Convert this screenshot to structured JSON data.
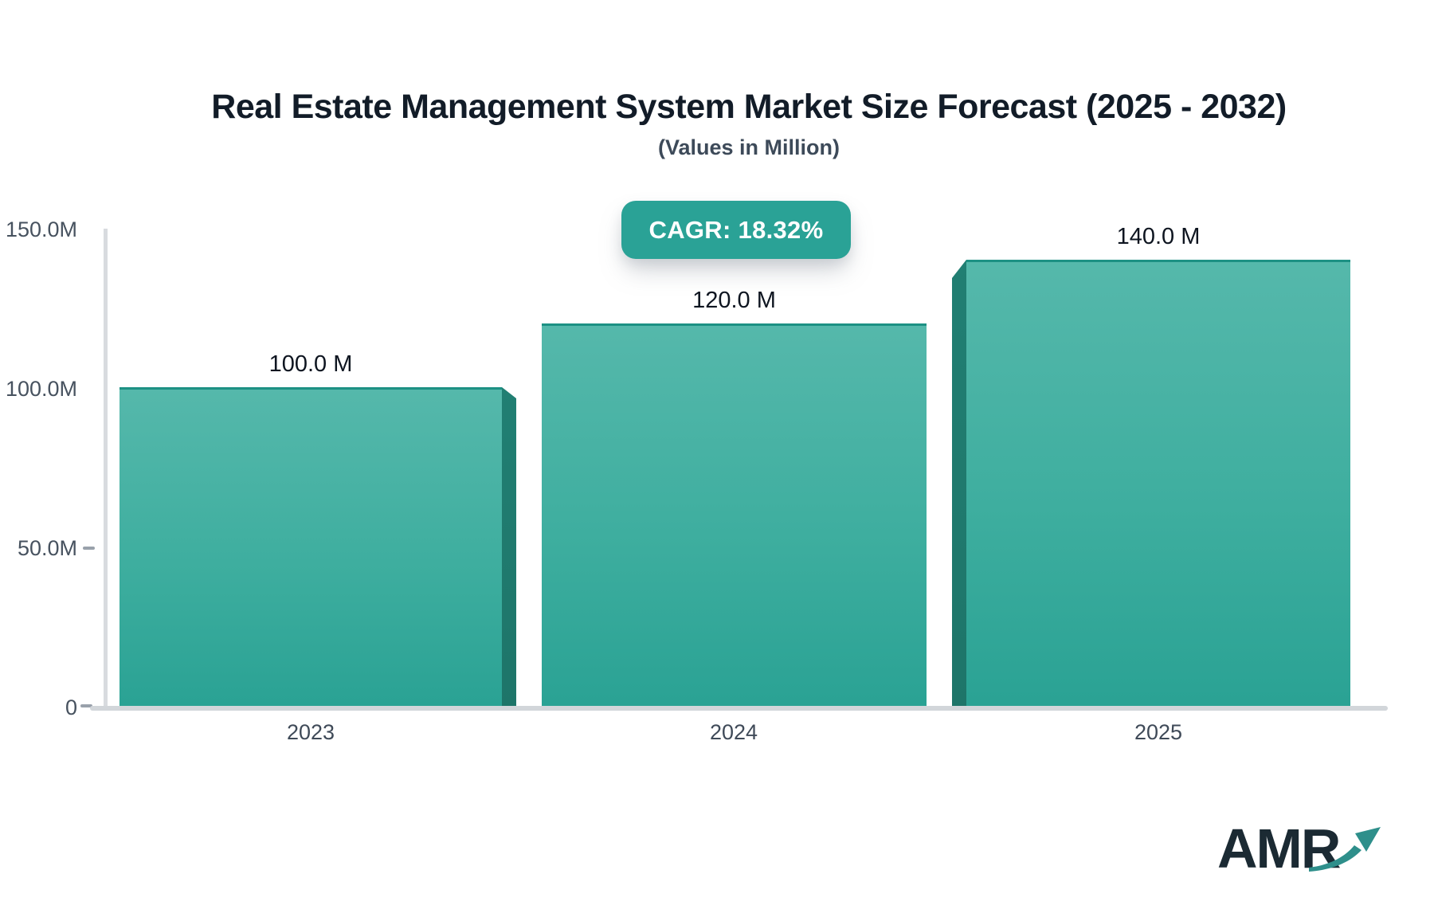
{
  "header": {
    "title": "Real Estate Management System Market Size Forecast (2025 - 2032)",
    "subtitle": "(Values in Million)"
  },
  "badge": {
    "label": "CAGR: 18.32%"
  },
  "logo": {
    "text": "AMR",
    "arrow_icon": "trending-up-arrow"
  },
  "colors": {
    "bar_top": "#55b8ab",
    "bar_bottom": "#2aa294",
    "bar_side_shadow": "#1f7c70",
    "bar_top_edge": "#1d9184",
    "badge_bg": "#2aa296",
    "axis_line": "#d8dbdf",
    "tick_text": "#47525f",
    "title_text": "#121c28",
    "logo_arrow": "#2e8f8b"
  },
  "chart_data": {
    "type": "bar",
    "title": "Real Estate Management System Market Size Forecast (2025 - 2032)",
    "subtitle": "(Values in Million)",
    "cagr_label": "CAGR: 18.32%",
    "cagr_percent": 18.32,
    "unit": "Million",
    "categories": [
      "2023",
      "2024",
      "2025"
    ],
    "values": [
      100,
      120,
      140
    ],
    "value_labels": [
      "100.0 M",
      "120.0 M",
      "140.0 M"
    ],
    "xlabel": "",
    "ylabel": "",
    "ylim": [
      0,
      150
    ],
    "y_ticks": [
      {
        "label": "150.0M",
        "value": 150
      },
      {
        "label": "100.0M",
        "value": 100
      },
      {
        "label": "50.0M",
        "value": 50
      },
      {
        "label": "0",
        "value": 0
      }
    ],
    "grid": false,
    "legend": false,
    "bar_style": "teal-gradient-3d"
  }
}
